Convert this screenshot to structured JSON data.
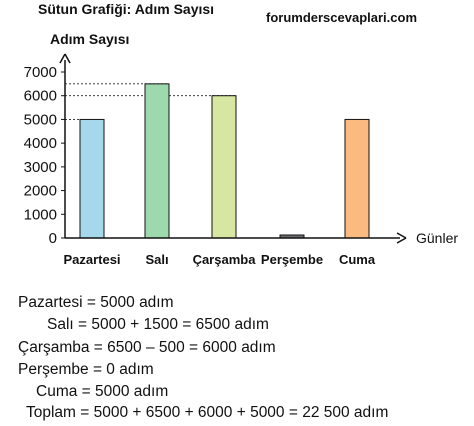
{
  "chart_data": {
    "type": "bar",
    "title": "Sütun Grafiği: Adım Sayısı",
    "ylabel": "Adım Sayısı",
    "xlabel": "Günler",
    "categories": [
      "Pazartesi",
      "Salı",
      "Çarşamba",
      "Perşembe",
      "Cuma"
    ],
    "values": [
      5000,
      6500,
      6000,
      0,
      5000
    ],
    "colors": [
      "#a5d8ea",
      "#9ed9ad",
      "#d7e6a0",
      "#6d6e71",
      "#fbbb80"
    ],
    "yticks": [
      0,
      1000,
      2000,
      3000,
      4000,
      5000,
      6000,
      7000
    ],
    "ylim": [
      0,
      7000
    ],
    "reference_lines": [
      6500,
      6000,
      5000
    ],
    "grid": false
  },
  "watermark": "forumderscevaplari.com",
  "calculations": [
    "Pazartesi = 5000 adım",
    "Salı = 5000 + 1500 = 6500 adım",
    "Çarşamba = 6500 – 500 = 6000 adım",
    "Perşembe = 0 adım",
    "Cuma = 5000 adım",
    "Toplam = 5000 + 6500 + 6000 + 5000 = 22 500 adım"
  ]
}
